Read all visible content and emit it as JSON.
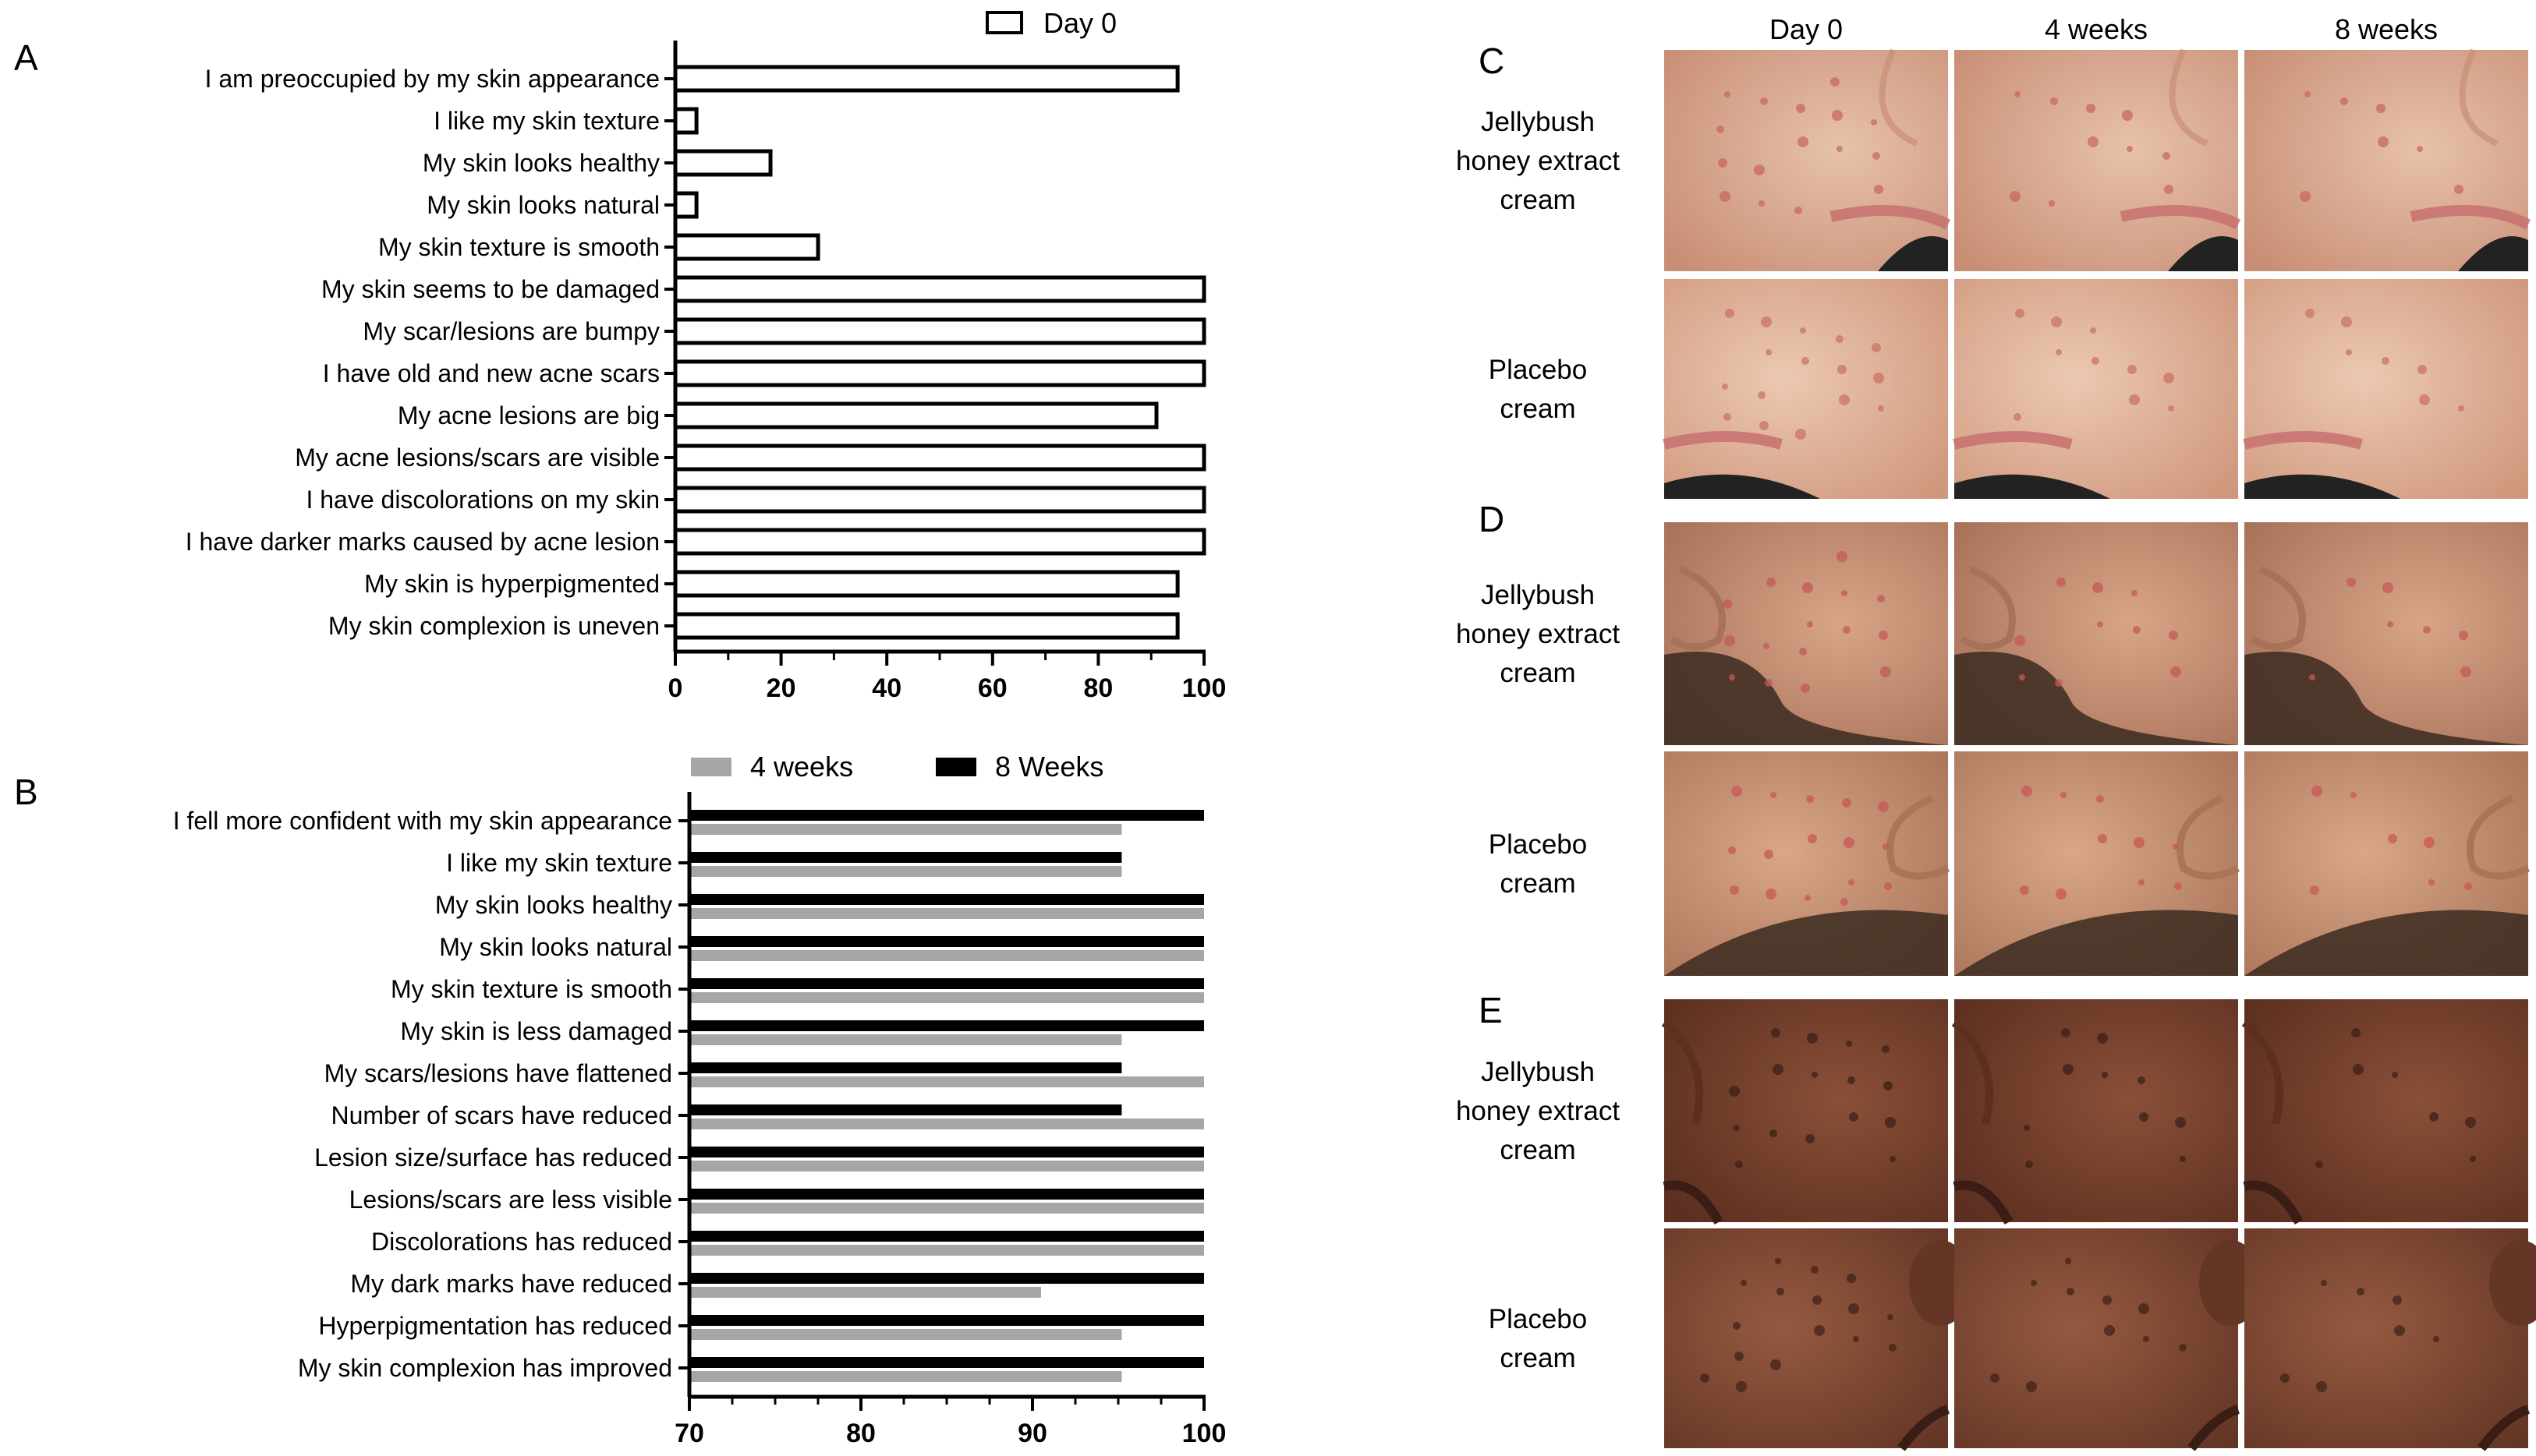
{
  "chart_data": [
    {
      "panel": "A",
      "type": "bar",
      "orientation": "horizontal",
      "categories": [
        "I am preoccupied by my skin appearance",
        "I like my skin texture",
        "My skin looks healthy",
        "My skin looks natural",
        "My skin texture is smooth",
        "My skin seems to be damaged",
        "My scar/lesions are bumpy",
        "I have old and new acne scars",
        "My acne lesions are big",
        "My acne lesions/scars are visible",
        "I have discolorations on my skin",
        "I have darker marks caused by acne lesion",
        "My skin is hyperpigmented",
        "My skin complexion is uneven"
      ],
      "series": [
        {
          "name": "Day 0",
          "color": "#ffffff",
          "stroke": "#000000",
          "values": [
            95,
            4,
            18,
            4,
            27,
            100,
            100,
            100,
            91,
            100,
            100,
            100,
            95,
            95
          ]
        }
      ],
      "xlim": [
        0,
        100
      ],
      "xticks": [
        0,
        20,
        40,
        60,
        80,
        100
      ],
      "legend": "top"
    },
    {
      "panel": "B",
      "type": "bar",
      "orientation": "horizontal",
      "categories": [
        "I fell more confident with my skin appearance",
        "I like my skin texture",
        "My skin looks healthy",
        "My skin looks natural",
        "My skin texture is smooth",
        "My skin is less damaged",
        "My scars/lesions have flattened",
        "Number of scars have reduced",
        "Lesion size/surface has reduced",
        "Lesions/scars are less visible",
        "Discolorations has reduced",
        "My dark marks have reduced",
        "Hyperpigmentation has reduced",
        "My skin complexion has improved"
      ],
      "series": [
        {
          "name": "4 weeks",
          "color": "#a6a6a6",
          "values": [
            95.2,
            95.2,
            100,
            100,
            100,
            95.2,
            100,
            100,
            100,
            100,
            100,
            90.5,
            95.2,
            95.2
          ]
        },
        {
          "name": "8 Weeks",
          "color": "#000000",
          "values": [
            100,
            95.2,
            100,
            100,
            100,
            100,
            95.2,
            95.2,
            100,
            100,
            100,
            100,
            100,
            100
          ]
        }
      ],
      "xlim": [
        70,
        100
      ],
      "xticks": [
        70,
        80,
        90,
        100
      ],
      "legend": "top"
    }
  ],
  "panels": {
    "a_letter": "A",
    "b_letter": "B",
    "c_letter": "C",
    "d_letter": "D",
    "e_letter": "E"
  },
  "photo_grid": {
    "columns": [
      "Day 0",
      "4 weeks",
      "8 weeks"
    ],
    "rows": [
      {
        "group": "C",
        "lines": [
          "Jellybush",
          "honey extract",
          "cream"
        ],
        "skin": "#e7c1ab",
        "shade": "#c98f76",
        "spots": "#c76a5e"
      },
      {
        "group": "C",
        "lines": [
          "Placebo",
          "cream"
        ],
        "skin": "#ecc8b2",
        "shade": "#cf977c",
        "spots": "#c97366"
      },
      {
        "group": "D",
        "lines": [
          "Jellybush",
          "honey extract",
          "cream"
        ],
        "skin": "#d8a486",
        "shade": "#a8725a",
        "spots": "#c4585a"
      },
      {
        "group": "D",
        "lines": [
          "Placebo",
          "cream"
        ],
        "skin": "#d9a688",
        "shade": "#a97458",
        "spots": "#c85556"
      },
      {
        "group": "E",
        "lines": [
          "Jellybush",
          "honey extract",
          "cream"
        ],
        "skin": "#8a5038",
        "shade": "#5c2f20",
        "spots": "#3e2018"
      },
      {
        "group": "E",
        "lines": [
          "Placebo",
          "cream"
        ],
        "skin": "#955a40",
        "shade": "#643626",
        "spots": "#42231a"
      }
    ]
  }
}
